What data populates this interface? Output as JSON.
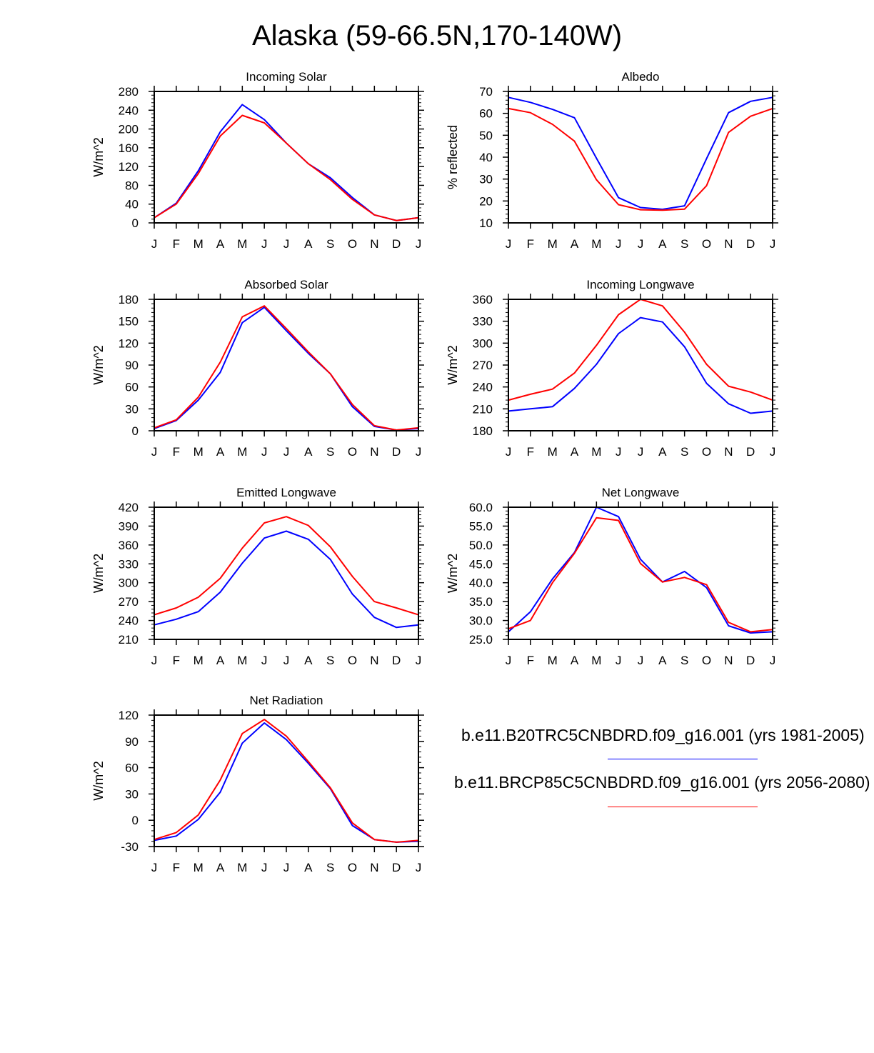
{
  "title": "Alaska (59-66.5N,170-140W)",
  "colors": {
    "series1": "#0000ff",
    "series2": "#ff0000",
    "axis": "#000000"
  },
  "legend": [
    {
      "label": "b.e11.B20TRC5CNBDRD.f09_g16.001 (yrs 1981-2005)",
      "color": "#0000ff"
    },
    {
      "label": "b.e11.BRCP85C5CNBDRD.f09_g16.001 (yrs 2056-2080)",
      "color": "#ff0000"
    }
  ],
  "chart_data": [
    {
      "type": "line",
      "title": "Incoming Solar",
      "ylabel": "W/m^2",
      "categories": [
        "J",
        "F",
        "M",
        "A",
        "M",
        "J",
        "J",
        "A",
        "S",
        "O",
        "N",
        "D",
        "J"
      ],
      "ylim": [
        0,
        280
      ],
      "yticks": [
        "0",
        "40",
        "80",
        "120",
        "160",
        "200",
        "240",
        "280"
      ],
      "series": [
        {
          "name": "b.e11.B20TRC5CNBDRD.f09_g16.001 (yrs 1981-2005)",
          "values": [
            11,
            42,
            111,
            194,
            252,
            220,
            170,
            126,
            96,
            54,
            17,
            5,
            11
          ]
        },
        {
          "name": "b.e11.BRCP85C5CNBDRD.f09_g16.001 (yrs 2056-2080)",
          "values": [
            11,
            40,
            105,
            185,
            229,
            213,
            170,
            126,
            92,
            50,
            17,
            5,
            11
          ]
        }
      ]
    },
    {
      "type": "line",
      "title": "Albedo",
      "ylabel": "% reflected",
      "categories": [
        "J",
        "F",
        "M",
        "A",
        "M",
        "J",
        "J",
        "A",
        "S",
        "O",
        "N",
        "D",
        "J"
      ],
      "ylim": [
        10,
        70
      ],
      "yticks": [
        "10",
        "20",
        "30",
        "40",
        "50",
        "60",
        "70"
      ],
      "series": [
        {
          "name": "b.e11.B20TRC5CNBDRD.f09_g16.001 (yrs 1981-2005)",
          "values": [
            67.3,
            65,
            61.8,
            58,
            39.5,
            21.5,
            17,
            16.2,
            17.8,
            39.3,
            60.3,
            65.5,
            67.3
          ]
        },
        {
          "name": "b.e11.BRCP85C5CNBDRD.f09_g16.001 (yrs 2056-2080)",
          "values": [
            62.2,
            60.3,
            55,
            47.3,
            29.7,
            18.3,
            16,
            15.8,
            16.3,
            27,
            51.3,
            58.7,
            62.2
          ]
        }
      ]
    },
    {
      "type": "line",
      "title": "Absorbed Solar",
      "ylabel": "W/m^2",
      "categories": [
        "J",
        "F",
        "M",
        "A",
        "M",
        "J",
        "J",
        "A",
        "S",
        "O",
        "N",
        "D",
        "J"
      ],
      "ylim": [
        0,
        180
      ],
      "yticks": [
        "0",
        "30",
        "60",
        "90",
        "120",
        "150",
        "180"
      ],
      "series": [
        {
          "name": "b.e11.B20TRC5CNBDRD.f09_g16.001 (yrs 1981-2005)",
          "values": [
            3,
            14,
            42,
            80,
            148,
            169,
            137,
            106,
            78,
            33,
            6,
            1,
            3
          ]
        },
        {
          "name": "b.e11.BRCP85C5CNBDRD.f09_g16.001 (yrs 2056-2080)",
          "values": [
            4,
            15,
            46,
            94,
            156,
            171,
            140,
            108,
            78,
            36,
            7,
            1,
            4
          ]
        }
      ]
    },
    {
      "type": "line",
      "title": "Incoming Longwave",
      "ylabel": "W/m^2",
      "categories": [
        "J",
        "F",
        "M",
        "A",
        "M",
        "J",
        "J",
        "A",
        "S",
        "O",
        "N",
        "D",
        "J"
      ],
      "ylim": [
        180,
        360
      ],
      "yticks": [
        "180",
        "210",
        "240",
        "270",
        "300",
        "330",
        "360"
      ],
      "series": [
        {
          "name": "b.e11.B20TRC5CNBDRD.f09_g16.001 (yrs 1981-2005)",
          "values": [
            207,
            210,
            213,
            238,
            271,
            313,
            335,
            329,
            295,
            245,
            217,
            204,
            207
          ]
        },
        {
          "name": "b.e11.BRCP85C5CNBDRD.f09_g16.001 (yrs 2056-2080)",
          "values": [
            222,
            230,
            237,
            259,
            297,
            339,
            360,
            351,
            315,
            271,
            241,
            233,
            222
          ]
        }
      ]
    },
    {
      "type": "line",
      "title": "Emitted Longwave",
      "ylabel": "W/m^2",
      "categories": [
        "J",
        "F",
        "M",
        "A",
        "M",
        "J",
        "J",
        "A",
        "S",
        "O",
        "N",
        "D",
        "J"
      ],
      "ylim": [
        210,
        420
      ],
      "yticks": [
        "210",
        "240",
        "270",
        "300",
        "330",
        "360",
        "390",
        "420"
      ],
      "series": [
        {
          "name": "b.e11.B20TRC5CNBDRD.f09_g16.001 (yrs 1981-2005)",
          "values": [
            233,
            242,
            254,
            285,
            331,
            371,
            382,
            369,
            337,
            282,
            245,
            229,
            233
          ]
        },
        {
          "name": "b.e11.BRCP85C5CNBDRD.f09_g16.001 (yrs 2056-2080)",
          "values": [
            249,
            260,
            277,
            307,
            355,
            395,
            405,
            391,
            357,
            310,
            270,
            260,
            249
          ]
        }
      ]
    },
    {
      "type": "line",
      "title": "Net Longwave",
      "ylabel": "W/m^2",
      "categories": [
        "J",
        "F",
        "M",
        "A",
        "M",
        "J",
        "J",
        "A",
        "S",
        "O",
        "N",
        "D",
        "J"
      ],
      "ylim": [
        25,
        60
      ],
      "yticks": [
        "25.0",
        "30.0",
        "35.0",
        "40.0",
        "45.0",
        "50.0",
        "55.0",
        "60.0"
      ],
      "series": [
        {
          "name": "b.e11.B20TRC5CNBDRD.f09_g16.001 (yrs 1981-2005)",
          "values": [
            27,
            32.3,
            41,
            48,
            60,
            57.5,
            46.2,
            40.2,
            43,
            38.7,
            28.6,
            26.7,
            27
          ]
        },
        {
          "name": "b.e11.BRCP85C5CNBDRD.f09_g16.001 (yrs 2056-2080)",
          "values": [
            27.8,
            30,
            40,
            47.8,
            57.2,
            56.5,
            45.1,
            40.2,
            41.4,
            39.5,
            29.5,
            27,
            27.6
          ]
        }
      ]
    },
    {
      "type": "line",
      "title": "Net Radiation",
      "ylabel": "W/m^2",
      "categories": [
        "J",
        "F",
        "M",
        "A",
        "M",
        "J",
        "J",
        "A",
        "S",
        "O",
        "N",
        "D",
        "J"
      ],
      "ylim": [
        -30,
        120
      ],
      "yticks": [
        "-30",
        "0",
        "30",
        "60",
        "90",
        "120"
      ],
      "series": [
        {
          "name": "b.e11.B20TRC5CNBDRD.f09_g16.001 (yrs 1981-2005)",
          "values": [
            -23,
            -18,
            1,
            32,
            88,
            111,
            92,
            65,
            36,
            -6,
            -22,
            -25,
            -24
          ]
        },
        {
          "name": "b.e11.BRCP85C5CNBDRD.f09_g16.001 (yrs 2056-2080)",
          "values": [
            -22,
            -14,
            6,
            46,
            99,
            115,
            96,
            67,
            37,
            -3,
            -22,
            -25,
            -23
          ]
        }
      ]
    }
  ]
}
